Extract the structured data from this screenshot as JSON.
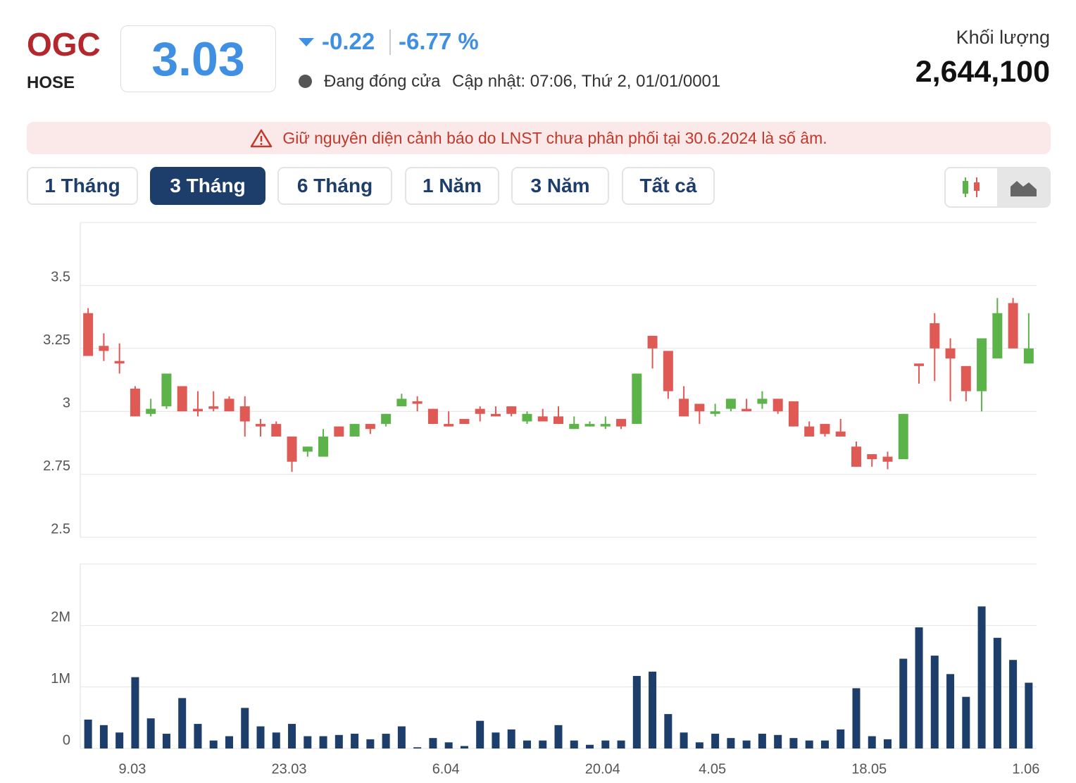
{
  "header": {
    "ticker": "OGC",
    "exchange": "HOSE",
    "price": "3.03",
    "change": "-0.22",
    "change_pct": "-6.77 %",
    "status": "Đang đóng cửa",
    "updated": "Cập nhật: 07:06, Thứ 2, 01/01/0001",
    "volume_label": "Khối lượng",
    "volume": "2,644,100"
  },
  "warning": "Giữ nguyên diện cảnh báo do LNST chưa phân phối tại 30.6.2024 là số âm.",
  "tabs": [
    "1 Tháng",
    "3 Tháng",
    "6 Tháng",
    "1 Năm",
    "3 Năm",
    "Tất cả"
  ],
  "chart_data": [
    {
      "type": "candlestick",
      "up_color": "#5cb34a",
      "down_color": "#e05a55",
      "ylim": [
        2.5,
        3.75
      ],
      "yticks": [
        2.5,
        2.75,
        3,
        3.25,
        3.5
      ],
      "grid": true,
      "open": [
        3.39,
        3.26,
        3.2,
        3.09,
        2.99,
        3.02,
        3.1,
        3.01,
        3.02,
        3.05,
        3.02,
        2.95,
        2.95,
        2.9,
        2.84,
        2.82,
        2.94,
        2.9,
        2.95,
        2.95,
        3.02,
        3.04,
        3.01,
        2.95,
        2.97,
        3.01,
        2.99,
        3.02,
        2.96,
        2.98,
        2.98,
        2.93,
        2.94,
        2.94,
        2.97,
        2.95,
        3.3,
        3.24,
        3.05,
        3.03,
        2.99,
        3.01,
        3.01,
        3.03,
        3.05,
        3.04,
        2.94,
        2.95,
        2.92,
        2.86,
        2.83,
        2.82,
        2.81,
        3.19,
        3.35,
        3.25,
        3.18,
        3.08,
        3.21,
        3.43,
        3.19
      ],
      "high": [
        3.41,
        3.31,
        3.27,
        3.1,
        3.05,
        3.15,
        3.1,
        3.08,
        3.08,
        3.06,
        3.06,
        2.97,
        2.96,
        2.9,
        2.86,
        2.93,
        2.94,
        2.95,
        2.95,
        2.99,
        3.07,
        3.06,
        3.01,
        3.0,
        2.97,
        3.02,
        3.02,
        3.02,
        3.0,
        3.01,
        3.02,
        2.98,
        2.96,
        2.98,
        2.97,
        3.15,
        3.3,
        3.24,
        3.1,
        3.03,
        3.03,
        3.05,
        3.05,
        3.08,
        3.05,
        3.04,
        2.96,
        2.95,
        2.97,
        2.88,
        2.83,
        2.84,
        2.99,
        3.19,
        3.39,
        3.29,
        3.18,
        3.29,
        3.45,
        3.45,
        3.39
      ],
      "low": [
        3.22,
        3.2,
        3.15,
        2.98,
        2.98,
        3.01,
        3.0,
        2.98,
        3.0,
        3.0,
        2.9,
        2.9,
        2.9,
        2.76,
        2.82,
        2.82,
        2.9,
        2.9,
        2.91,
        2.94,
        3.02,
        3.0,
        2.95,
        2.94,
        2.95,
        2.96,
        2.98,
        2.98,
        2.95,
        2.96,
        2.95,
        2.93,
        2.94,
        2.93,
        2.93,
        2.95,
        3.17,
        3.05,
        2.98,
        2.95,
        2.98,
        3.0,
        3.0,
        3.01,
        2.99,
        2.94,
        2.9,
        2.9,
        2.9,
        2.78,
        2.78,
        2.77,
        2.81,
        3.11,
        3.12,
        3.04,
        3.04,
        3.0,
        3.21,
        3.25,
        3.19
      ],
      "close": [
        3.22,
        3.24,
        3.19,
        2.98,
        3.01,
        3.15,
        3.0,
        3.0,
        3.01,
        3.0,
        2.96,
        2.94,
        2.9,
        2.8,
        2.86,
        2.9,
        2.9,
        2.95,
        2.93,
        2.99,
        3.05,
        3.03,
        2.95,
        2.94,
        2.95,
        2.99,
        2.98,
        2.99,
        2.99,
        2.96,
        2.95,
        2.95,
        2.95,
        2.95,
        2.94,
        3.15,
        3.25,
        3.08,
        2.98,
        3.0,
        3.0,
        3.05,
        3.0,
        3.05,
        3.0,
        2.94,
        2.9,
        2.91,
        2.9,
        2.78,
        2.81,
        2.8,
        2.99,
        3.18,
        3.25,
        3.21,
        3.08,
        3.29,
        3.39,
        3.25,
        3.25
      ]
    },
    {
      "type": "bar",
      "color": "#1d3e6b",
      "ylim": [
        0,
        3000000
      ],
      "yticks": [
        0,
        {
          "value": 1000000,
          "label": "1M"
        },
        {
          "value": 2000000,
          "label": "2M"
        }
      ],
      "grid": true,
      "categories": [
        null,
        null,
        null,
        "9.03",
        null,
        null,
        null,
        null,
        null,
        null,
        null,
        null,
        null,
        "23.03",
        null,
        null,
        null,
        null,
        null,
        null,
        null,
        null,
        null,
        "6.04",
        null,
        null,
        null,
        null,
        null,
        null,
        null,
        null,
        null,
        "20.04",
        null,
        null,
        null,
        null,
        null,
        null,
        "4.05",
        null,
        null,
        null,
        null,
        null,
        null,
        null,
        null,
        null,
        "18.05",
        null,
        null,
        null,
        null,
        null,
        null,
        null,
        null,
        null,
        "1.06"
      ],
      "values": [
        470000,
        380000,
        260000,
        1160000,
        490000,
        240000,
        820000,
        400000,
        130000,
        200000,
        660000,
        360000,
        260000,
        400000,
        200000,
        200000,
        220000,
        240000,
        150000,
        240000,
        360000,
        20000,
        170000,
        100000,
        40000,
        450000,
        260000,
        310000,
        130000,
        130000,
        380000,
        130000,
        60000,
        130000,
        130000,
        1180000,
        1250000,
        560000,
        260000,
        100000,
        240000,
        170000,
        130000,
        240000,
        220000,
        170000,
        130000,
        130000,
        310000,
        980000,
        200000,
        150000,
        1460000,
        1970000,
        1510000,
        1210000,
        840000,
        2310000,
        1800000,
        1440000,
        1070000
      ]
    }
  ]
}
